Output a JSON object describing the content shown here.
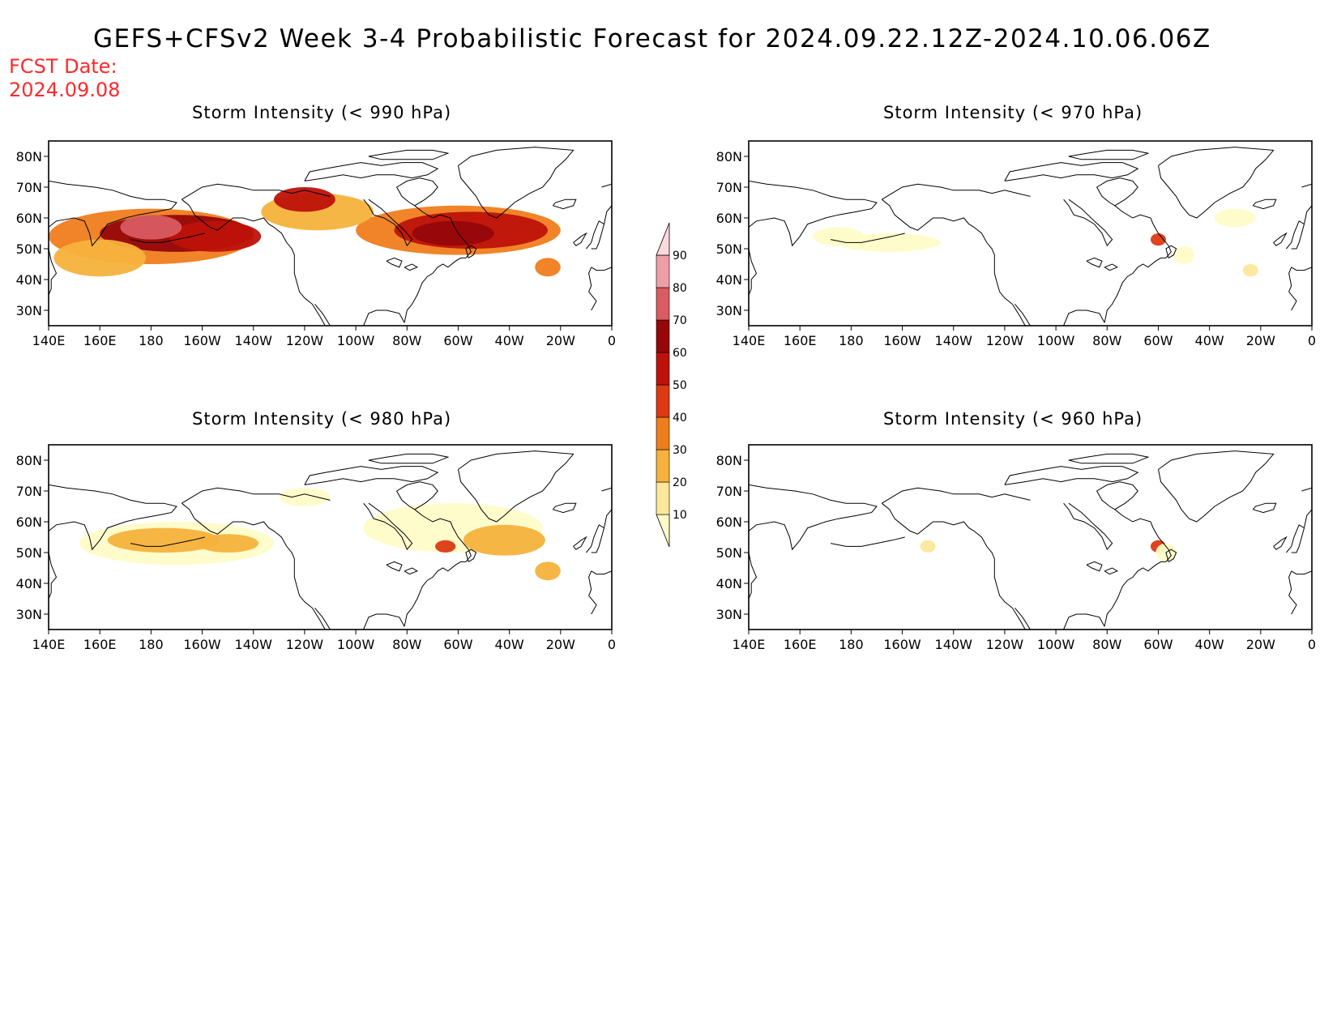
{
  "title": "GEFS+CFSv2 Week 3-4 Probabilistic Forecast for 2024.09.22.12Z-2024.10.06.06Z",
  "fcst_date_label": "FCST Date:",
  "fcst_date": "2024.09.08",
  "lat_labels": [
    "80N",
    "70N",
    "60N",
    "50N",
    "40N",
    "30N"
  ],
  "lon_labels": [
    "140E",
    "160E",
    "180",
    "160W",
    "140W",
    "120W",
    "100W",
    "80W",
    "60W",
    "40W",
    "20W",
    "0"
  ],
  "colorbar": {
    "levels": [
      "10",
      "20",
      "30",
      "40",
      "50",
      "60",
      "70",
      "80",
      "90"
    ],
    "colors": [
      "#fffcc8",
      "#fce89a",
      "#f5b23c",
      "#f07d1c",
      "#dc3a12",
      "#bd120a",
      "#96060a",
      "#d85c62",
      "#ee9ea6",
      "#fbd9dd"
    ]
  },
  "panels": [
    {
      "title": "Storm Intensity (< 990 hPa)",
      "blobs": [
        {
          "lon": 180,
          "lat": 54,
          "rlon": 40,
          "rlat": 9,
          "level": 3
        },
        {
          "lon": 190,
          "lat": 55,
          "rlon": 30,
          "rlat": 6,
          "level": 6
        },
        {
          "lon": 205,
          "lat": 54,
          "rlon": 18,
          "rlat": 5,
          "level": 5
        },
        {
          "lon": 180,
          "lat": 57,
          "rlon": 12,
          "rlat": 4,
          "level": 7
        },
        {
          "lon": 160,
          "lat": 47,
          "rlon": 18,
          "rlat": 6,
          "level": 2
        },
        {
          "lon": 300,
          "lat": 56,
          "rlon": 40,
          "rlat": 8,
          "level": 3
        },
        {
          "lon": 305,
          "lat": 56,
          "rlon": 30,
          "rlat": 6,
          "level": 5
        },
        {
          "lon": 298,
          "lat": 55,
          "rlon": 16,
          "rlat": 4,
          "level": 6
        },
        {
          "lon": 245,
          "lat": 62,
          "rlon": 22,
          "rlat": 6,
          "level": 2
        },
        {
          "lon": 240,
          "lat": 66,
          "rlon": 12,
          "rlat": 4,
          "level": 5
        },
        {
          "lon": 335,
          "lat": 44,
          "rlon": 5,
          "rlat": 3,
          "level": 3
        }
      ]
    },
    {
      "title": "Storm Intensity (< 970 hPa)",
      "blobs": [
        {
          "lon": 195,
          "lat": 52,
          "rlon": 20,
          "rlat": 3,
          "level": 0
        },
        {
          "lon": 175,
          "lat": 54,
          "rlon": 10,
          "rlat": 3,
          "level": 0
        },
        {
          "lon": 300,
          "lat": 53,
          "rlon": 3,
          "rlat": 2,
          "level": 4
        },
        {
          "lon": 330,
          "lat": 60,
          "rlon": 8,
          "rlat": 3,
          "level": 0
        },
        {
          "lon": 310,
          "lat": 48,
          "rlon": 4,
          "rlat": 3,
          "level": 0
        },
        {
          "lon": 336,
          "lat": 43,
          "rlon": 3,
          "rlat": 2,
          "level": 1
        }
      ]
    },
    {
      "title": "Storm Intensity (< 980 hPa)",
      "blobs": [
        {
          "lon": 190,
          "lat": 53,
          "rlon": 38,
          "rlat": 7,
          "level": 0
        },
        {
          "lon": 185,
          "lat": 54,
          "rlon": 22,
          "rlat": 4,
          "level": 2
        },
        {
          "lon": 210,
          "lat": 53,
          "rlon": 12,
          "rlat": 3,
          "level": 2
        },
        {
          "lon": 298,
          "lat": 58,
          "rlon": 35,
          "rlat": 8,
          "level": 0
        },
        {
          "lon": 318,
          "lat": 54,
          "rlon": 16,
          "rlat": 5,
          "level": 2
        },
        {
          "lon": 295,
          "lat": 52,
          "rlon": 4,
          "rlat": 2,
          "level": 4
        },
        {
          "lon": 240,
          "lat": 68,
          "rlon": 10,
          "rlat": 3,
          "level": 0
        },
        {
          "lon": 335,
          "lat": 44,
          "rlon": 5,
          "rlat": 3,
          "level": 2
        }
      ]
    },
    {
      "title": "Storm Intensity (< 960 hPa)",
      "blobs": [
        {
          "lon": 210,
          "lat": 52,
          "rlon": 3,
          "rlat": 2,
          "level": 1
        },
        {
          "lon": 300,
          "lat": 52,
          "rlon": 3,
          "rlat": 2,
          "level": 4
        },
        {
          "lon": 303,
          "lat": 50,
          "rlon": 4,
          "rlat": 3,
          "level": 0
        }
      ]
    }
  ]
}
